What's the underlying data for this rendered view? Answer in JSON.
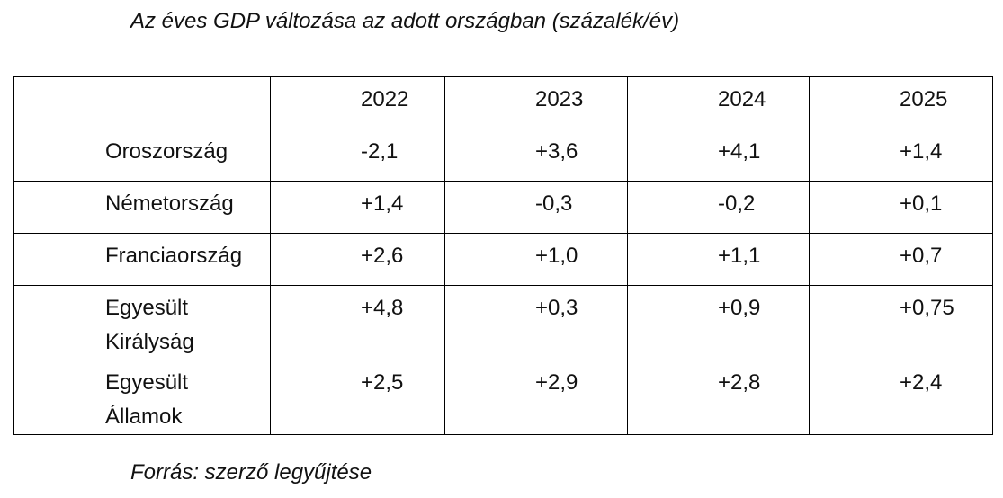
{
  "title": "Az éves GDP változása az adott országban (százalék/év)",
  "table": {
    "corner": "",
    "years": [
      "2022",
      "2023",
      "2024",
      "2025"
    ],
    "rows": [
      {
        "country": "Oroszország",
        "values": [
          "-2,1",
          "+3,6",
          "+4,1",
          "+1,4"
        ]
      },
      {
        "country": "Németország",
        "values": [
          "+1,4",
          "-0,3",
          "-0,2",
          "+0,1"
        ]
      },
      {
        "country": "Franciaország",
        "values": [
          "+2,6",
          "+1,0",
          "+1,1",
          "+0,7"
        ]
      },
      {
        "country": "Egyesült Királyság",
        "values": [
          "+4,8",
          "+0,3",
          "+0,9",
          "+0,75"
        ]
      },
      {
        "country": "Egyesült Államok",
        "values": [
          "+2,5",
          "+2,9",
          "+2,8",
          "+2,4"
        ]
      }
    ]
  },
  "source": "Forrás: szerző legyűjtése"
}
